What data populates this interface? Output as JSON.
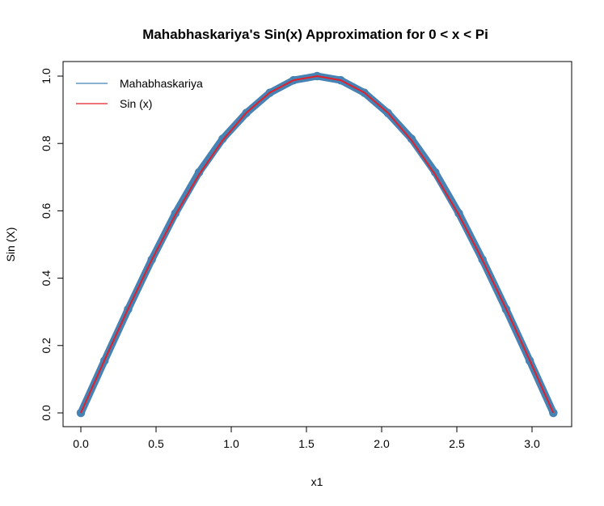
{
  "chart_data": {
    "type": "line",
    "title": "Mahabhaskariya's Sin(x) Approximation for 0 < x < Pi",
    "xlabel": "x1",
    "ylabel": "Sin (X)",
    "xlim": [
      0,
      3.1416
    ],
    "ylim": [
      0,
      1
    ],
    "x_ticks": [
      "0.0",
      "0.5",
      "1.0",
      "1.5",
      "2.0",
      "2.5",
      "3.0"
    ],
    "y_ticks": [
      "0.0",
      "0.2",
      "0.4",
      "0.6",
      "0.8",
      "1.0"
    ],
    "grid": false,
    "legend_position": "top-left",
    "x": [
      0.0,
      0.1571,
      0.3142,
      0.4712,
      0.6283,
      0.7854,
      0.9425,
      1.0996,
      1.2566,
      1.4137,
      1.5708,
      1.7279,
      1.885,
      2.042,
      2.1991,
      2.3562,
      2.5133,
      2.6704,
      2.8274,
      2.9845,
      3.1416
    ],
    "series": [
      {
        "name": "Mahabhaskariya",
        "color": "#4682B4",
        "marker": "open-circle",
        "values": [
          0.0,
          0.1551,
          0.3077,
          0.4551,
          0.5926,
          0.7143,
          0.8136,
          0.8902,
          0.9505,
          0.9877,
          1.0,
          0.9877,
          0.9505,
          0.8902,
          0.8136,
          0.7143,
          0.5926,
          0.4551,
          0.3077,
          0.1551,
          0.0
        ]
      },
      {
        "name": "Sin (x)",
        "color": "#E0202A",
        "marker": "none",
        "values": [
          0.0,
          0.1564,
          0.309,
          0.454,
          0.5878,
          0.7071,
          0.809,
          0.891,
          0.9511,
          0.9877,
          1.0,
          0.9877,
          0.9511,
          0.891,
          0.809,
          0.7071,
          0.5878,
          0.454,
          0.309,
          0.1564,
          0.0
        ]
      }
    ]
  }
}
